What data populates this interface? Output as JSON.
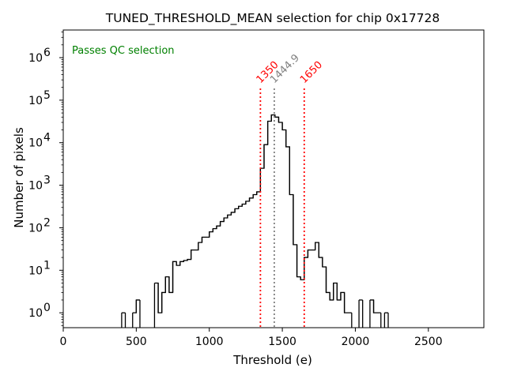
{
  "chart_data": {
    "type": "histogram",
    "title": "TUNED_THRESHOLD_MEAN selection for chip 0x17728",
    "xlabel": "Threshold (e)",
    "ylabel": "Number of pixels",
    "xlim": [
      0,
      2880
    ],
    "ylim_log10": [
      -0.35,
      6.65
    ],
    "yscale": "log",
    "x_ticks": [
      0,
      500,
      1000,
      1500,
      2000,
      2500
    ],
    "y_ticks": [
      {
        "exp": 0,
        "label_base": "10",
        "label_exp": "0"
      },
      {
        "exp": 1,
        "label_base": "10",
        "label_exp": "1"
      },
      {
        "exp": 2,
        "label_base": "10",
        "label_exp": "2"
      },
      {
        "exp": 3,
        "label_base": "10",
        "label_exp": "3"
      },
      {
        "exp": 4,
        "label_base": "10",
        "label_exp": "4"
      },
      {
        "exp": 5,
        "label_base": "10",
        "label_exp": "5"
      },
      {
        "exp": 6,
        "label_base": "10",
        "label_exp": "6"
      }
    ],
    "bin_width": 25,
    "bins": [
      [
        400,
        1
      ],
      [
        475,
        1
      ],
      [
        500,
        2
      ],
      [
        625,
        5
      ],
      [
        650,
        1
      ],
      [
        675,
        3
      ],
      [
        700,
        7
      ],
      [
        725,
        3
      ],
      [
        750,
        16
      ],
      [
        775,
        13
      ],
      [
        800,
        16
      ],
      [
        825,
        17
      ],
      [
        850,
        18
      ],
      [
        875,
        30
      ],
      [
        900,
        30
      ],
      [
        925,
        45
      ],
      [
        950,
        60
      ],
      [
        975,
        60
      ],
      [
        1000,
        80
      ],
      [
        1025,
        95
      ],
      [
        1050,
        110
      ],
      [
        1075,
        140
      ],
      [
        1100,
        170
      ],
      [
        1125,
        200
      ],
      [
        1150,
        230
      ],
      [
        1175,
        280
      ],
      [
        1200,
        320
      ],
      [
        1225,
        360
      ],
      [
        1250,
        420
      ],
      [
        1275,
        500
      ],
      [
        1300,
        600
      ],
      [
        1325,
        700
      ],
      [
        1350,
        2500
      ],
      [
        1375,
        9000
      ],
      [
        1400,
        32000
      ],
      [
        1425,
        45000
      ],
      [
        1450,
        40000
      ],
      [
        1475,
        30000
      ],
      [
        1500,
        20000
      ],
      [
        1525,
        8000
      ],
      [
        1550,
        600
      ],
      [
        1575,
        40
      ],
      [
        1600,
        7
      ],
      [
        1625,
        6
      ],
      [
        1650,
        20
      ],
      [
        1675,
        30
      ],
      [
        1700,
        30
      ],
      [
        1725,
        45
      ],
      [
        1750,
        20
      ],
      [
        1775,
        12
      ],
      [
        1800,
        3
      ],
      [
        1825,
        2
      ],
      [
        1850,
        5
      ],
      [
        1875,
        2
      ],
      [
        1900,
        3
      ],
      [
        1925,
        1
      ],
      [
        1950,
        1
      ],
      [
        2025,
        2
      ],
      [
        2100,
        2
      ],
      [
        2125,
        1
      ],
      [
        2150,
        1
      ],
      [
        2200,
        1
      ]
    ],
    "step_color": "#000000",
    "vlines": [
      {
        "x": 1350,
        "label": "1350",
        "color": "#ff0000"
      },
      {
        "x": 1444.9,
        "label": "1444.9",
        "color": "#808080"
      },
      {
        "x": 1650,
        "label": "1650",
        "color": "#ff0000"
      }
    ],
    "status_text": "Passes QC selection",
    "status_color": "#008000"
  }
}
